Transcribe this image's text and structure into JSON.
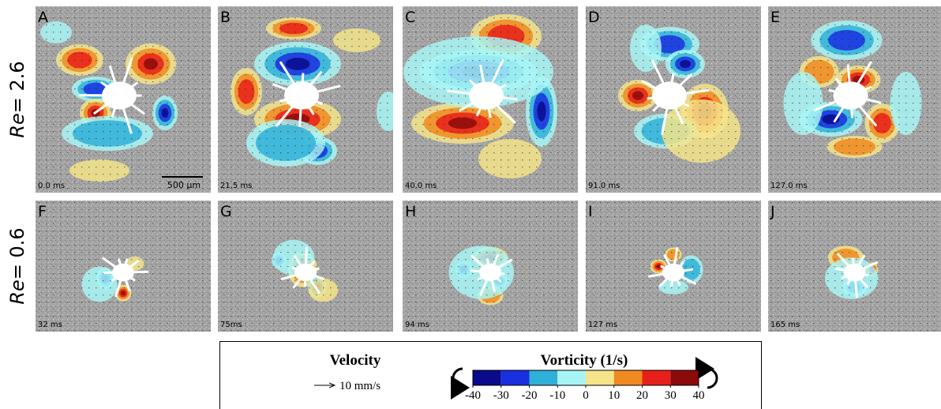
{
  "rows": [
    {
      "symbol": "Re",
      "text": "= 2.6"
    },
    {
      "symbol": "Re",
      "text": "= 0.6"
    }
  ],
  "panels": [
    {
      "letter": "A",
      "time": "0.0 ms"
    },
    {
      "letter": "B",
      "time": "21.5 ms"
    },
    {
      "letter": "C",
      "time": "40.0 ms"
    },
    {
      "letter": "D",
      "time": "91.0 ms"
    },
    {
      "letter": "E",
      "time": "127.0 ms"
    },
    {
      "letter": "F",
      "time": "32 ms"
    },
    {
      "letter": "G",
      "time": "75ms"
    },
    {
      "letter": "H",
      "time": "94 ms"
    },
    {
      "letter": "I",
      "time": "127 ms"
    },
    {
      "letter": "J",
      "time": "165 ms"
    }
  ],
  "scale_bar": "500 μm",
  "legend": {
    "velocity_title": "Velocity",
    "velocity_scale": "10 mm/s",
    "vorticity_title": "Vorticity (1/s)",
    "colorbar": {
      "ticks": [
        -40,
        -30,
        -20,
        -10,
        0,
        10,
        20,
        30,
        40
      ],
      "colors": [
        "#0a0a8c",
        "#1a2fe0",
        "#2fb0d8",
        "#a8f4f4",
        "#f5e48a",
        "#f08a20",
        "#e8201a",
        "#8c0a0a"
      ]
    }
  }
}
